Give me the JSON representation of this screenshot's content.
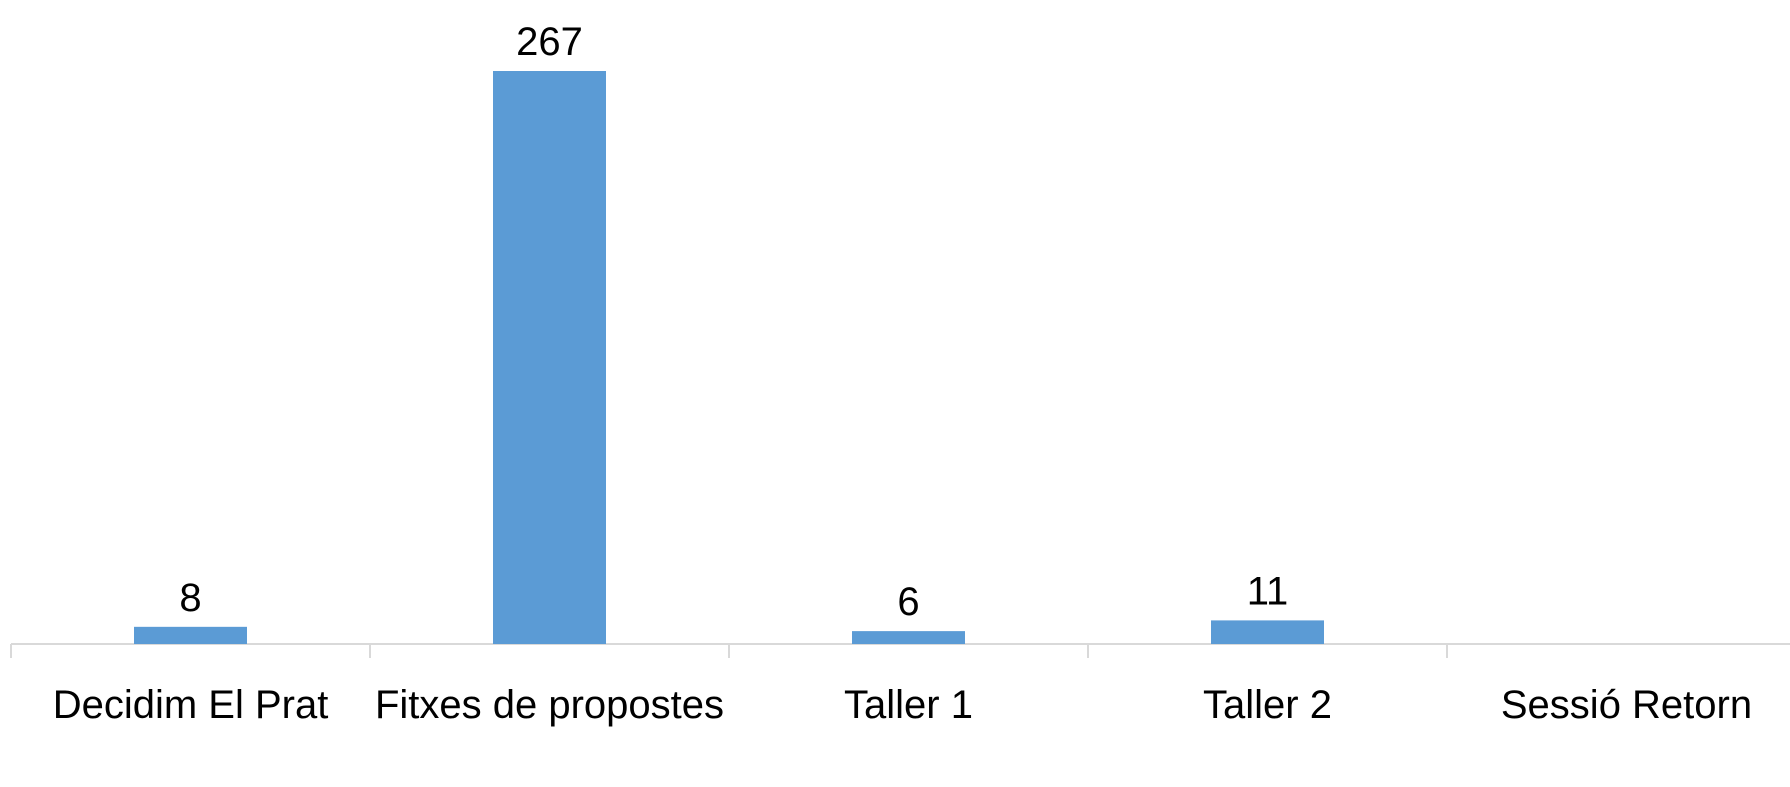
{
  "chart_data": {
    "type": "bar",
    "categories": [
      "Decidim El Prat",
      "Fitxes de propostes",
      "Taller 1",
      "Taller 2",
      "Sessió Retorn"
    ],
    "values": [
      8,
      267,
      6,
      11,
      null
    ],
    "color": "#5b9bd5"
  }
}
